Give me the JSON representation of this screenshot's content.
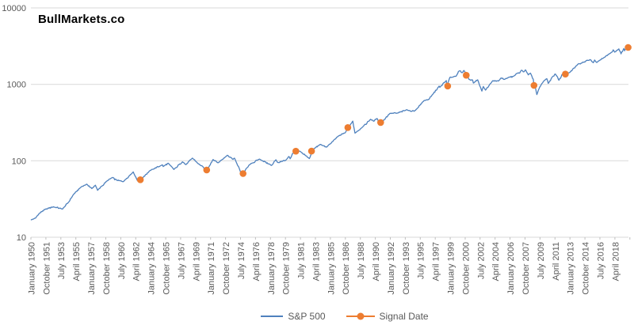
{
  "title": "BullMarkets.co",
  "colors": {
    "sp500_line": "#4F81BD",
    "signal": "#ED7D31",
    "gridline": "#D9D9D9",
    "tick": "#BFBFBF",
    "axis_text": "#595959",
    "title_text": "#000000",
    "background": "#FFFFFF"
  },
  "chart_data": {
    "type": "line",
    "title": "BullMarkets.co",
    "grid": true,
    "legend_position": "bottom",
    "y_axis": {
      "scale": "log",
      "min": 10,
      "max": 10000,
      "tick_values": [
        10,
        100,
        1000,
        10000
      ],
      "tick_labels": [
        "10",
        "100",
        "1000",
        "10000"
      ]
    },
    "x_axis": {
      "start_month": "1950-01",
      "end_month": "2019-10",
      "label_interval_months": 21,
      "tick_labels": [
        "January 1950",
        "October 1951",
        "July 1953",
        "April 1955",
        "January 1957",
        "October 1958",
        "July 1960",
        "April 1962",
        "January 1964",
        "October 1965",
        "July 1967",
        "April 1969",
        "January 1971",
        "October 1972",
        "July 1974",
        "April 1976",
        "January 1978",
        "October 1979",
        "July 1981",
        "April 1983",
        "January 1985",
        "October 1986",
        "July 1988",
        "April 1990",
        "January 1992",
        "October 1993",
        "July 1995",
        "April 1997",
        "January 1999",
        "October 2000",
        "July 2002",
        "April 2004",
        "January 2006",
        "October 2007",
        "July 2009",
        "April 2011",
        "January 2013",
        "October 2014",
        "July 2016",
        "April 2018"
      ]
    },
    "series": [
      {
        "name": "S&P 500",
        "type": "line",
        "color": "#4F81BD",
        "anchors": [
          [
            "1950-01",
            16.9
          ],
          [
            "1950-07",
            17.8
          ],
          [
            "1950-12",
            20.4
          ],
          [
            "1951-09",
            23.3
          ],
          [
            "1952-08",
            25.0
          ],
          [
            "1953-09",
            23.4
          ],
          [
            "1954-06",
            29.2
          ],
          [
            "1954-12",
            36.0
          ],
          [
            "1955-11",
            45.5
          ],
          [
            "1956-07",
            49.4
          ],
          [
            "1957-02",
            43.3
          ],
          [
            "1957-07",
            47.9
          ],
          [
            "1957-10",
            41.1
          ],
          [
            "1958-12",
            55.2
          ],
          [
            "1959-07",
            60.5
          ],
          [
            "1960-01",
            55.6
          ],
          [
            "1960-10",
            53.4
          ],
          [
            "1961-12",
            71.6
          ],
          [
            "1962-06",
            54.8
          ],
          [
            "1962-08",
            59.1
          ],
          [
            "1962-10",
            56.5
          ],
          [
            "1963-12",
            75.0
          ],
          [
            "1965-05",
            88.4
          ],
          [
            "1965-06",
            84.1
          ],
          [
            "1966-01",
            92.9
          ],
          [
            "1966-09",
            77.1
          ],
          [
            "1967-09",
            96.7
          ],
          [
            "1968-02",
            89.1
          ],
          [
            "1968-11",
            108.4
          ],
          [
            "1969-07",
            91.8
          ],
          [
            "1970-01",
            85.0
          ],
          [
            "1970-06",
            72.7
          ],
          [
            "1971-04",
            103.9
          ],
          [
            "1971-11",
            94.0
          ],
          [
            "1972-12",
            118.1
          ],
          [
            "1973-08",
            104.2
          ],
          [
            "1973-10",
            108.3
          ],
          [
            "1974-09",
            63.5
          ],
          [
            "1974-11",
            69.9
          ],
          [
            "1975-07",
            88.8
          ],
          [
            "1976-09",
            105.2
          ],
          [
            "1978-02",
            87.0
          ],
          [
            "1978-08",
            103.3
          ],
          [
            "1978-11",
            94.7
          ],
          [
            "1979-10",
            101.8
          ],
          [
            "1980-02",
            113.7
          ],
          [
            "1980-04",
            106.3
          ],
          [
            "1980-11",
            140.5
          ],
          [
            "1981-07",
            130.9
          ],
          [
            "1982-07",
            107.1
          ],
          [
            "1982-12",
            140.6
          ],
          [
            "1983-10",
            163.6
          ],
          [
            "1984-07",
            150.7
          ],
          [
            "1985-12",
            211.3
          ],
          [
            "1986-09",
            231.3
          ],
          [
            "1987-08",
            329.8
          ],
          [
            "1987-11",
            230.3
          ],
          [
            "1988-10",
            278.5
          ],
          [
            "1989-09",
            349.2
          ],
          [
            "1990-01",
            329.1
          ],
          [
            "1990-06",
            358.0
          ],
          [
            "1990-10",
            304.0
          ],
          [
            "1991-12",
            417.1
          ],
          [
            "1992-10",
            418.7
          ],
          [
            "1993-12",
            466.5
          ],
          [
            "1994-06",
            444.3
          ],
          [
            "1994-12",
            459.3
          ],
          [
            "1995-12",
            615.9
          ],
          [
            "1996-07",
            639.9
          ],
          [
            "1996-12",
            740.7
          ],
          [
            "1997-09",
            947.3
          ],
          [
            "1997-10",
            914.6
          ],
          [
            "1998-07",
            1120.7
          ],
          [
            "1998-08",
            957.3
          ],
          [
            "1998-12",
            1229.2
          ],
          [
            "1999-09",
            1282.7
          ],
          [
            "1999-12",
            1469.3
          ],
          [
            "2000-03",
            1498.6
          ],
          [
            "2000-05",
            1420.6
          ],
          [
            "2000-08",
            1517.7
          ],
          [
            "2000-12",
            1320.3
          ],
          [
            "2001-03",
            1160.3
          ],
          [
            "2001-08",
            1133.6
          ],
          [
            "2001-09",
            1040.9
          ],
          [
            "2002-03",
            1147.4
          ],
          [
            "2002-09",
            815.3
          ],
          [
            "2002-11",
            936.3
          ],
          [
            "2003-02",
            841.2
          ],
          [
            "2003-12",
            1111.9
          ],
          [
            "2004-08",
            1104.2
          ],
          [
            "2004-12",
            1211.9
          ],
          [
            "2005-04",
            1156.9
          ],
          [
            "2005-12",
            1248.3
          ],
          [
            "2006-05",
            1270.1
          ],
          [
            "2006-12",
            1418.3
          ],
          [
            "2007-02",
            1406.8
          ],
          [
            "2007-05",
            1530.6
          ],
          [
            "2007-07",
            1455.3
          ],
          [
            "2007-10",
            1549.4
          ],
          [
            "2008-02",
            1330.6
          ],
          [
            "2008-05",
            1400.4
          ],
          [
            "2008-09",
            1166.4
          ],
          [
            "2008-10",
            968.8
          ],
          [
            "2008-12",
            903.3
          ],
          [
            "2009-02",
            735.1
          ],
          [
            "2009-06",
            919.3
          ],
          [
            "2009-12",
            1115.1
          ],
          [
            "2010-04",
            1186.7
          ],
          [
            "2010-06",
            1030.7
          ],
          [
            "2010-12",
            1257.6
          ],
          [
            "2011-04",
            1363.6
          ],
          [
            "2011-09",
            1131.4
          ],
          [
            "2012-03",
            1408.5
          ],
          [
            "2012-05",
            1310.3
          ],
          [
            "2012-12",
            1426.2
          ],
          [
            "2013-12",
            1848.4
          ],
          [
            "2014-09",
            1972.3
          ],
          [
            "2014-12",
            2058.9
          ],
          [
            "2015-05",
            2107.4
          ],
          [
            "2015-09",
            1920.0
          ],
          [
            "2015-11",
            2080.4
          ],
          [
            "2016-02",
            1932.2
          ],
          [
            "2016-12",
            2238.8
          ],
          [
            "2017-12",
            2673.6
          ],
          [
            "2018-01",
            2823.8
          ],
          [
            "2018-03",
            2640.9
          ],
          [
            "2018-09",
            2914.0
          ],
          [
            "2018-12",
            2506.9
          ],
          [
            "2019-04",
            2945.8
          ],
          [
            "2019-05",
            2752.1
          ],
          [
            "2019-07",
            2980.4
          ],
          [
            "2019-10",
            3037.6
          ]
        ]
      },
      {
        "name": "Signal Date",
        "type": "scatter",
        "color": "#ED7D31",
        "points": [
          [
            "1962-10",
            56.5
          ],
          [
            "1970-07",
            75.7
          ],
          [
            "1974-10",
            68.0
          ],
          [
            "1980-12",
            133.5
          ],
          [
            "1982-10",
            133.7
          ],
          [
            "1987-01",
            272.0
          ],
          [
            "1990-11",
            317.0
          ],
          [
            "1998-09",
            950.0
          ],
          [
            "2000-11",
            1315.0
          ],
          [
            "2008-10",
            968.8
          ],
          [
            "2012-06",
            1362.0
          ],
          [
            "2019-10",
            3037.6
          ]
        ]
      }
    ]
  },
  "legend": {
    "items": [
      {
        "label": "S&P 500",
        "marker": "line"
      },
      {
        "label": "Signal Date",
        "marker": "line-dot"
      }
    ]
  }
}
